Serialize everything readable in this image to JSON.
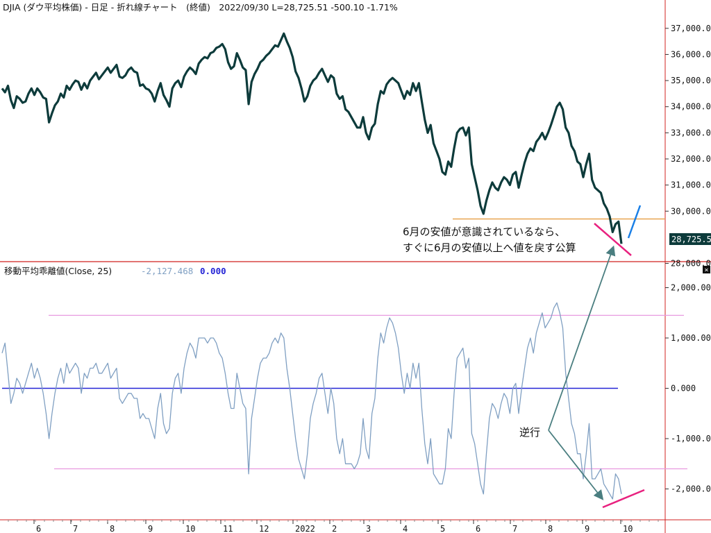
{
  "header": {
    "title": "DJIA (ダウ平均株価) - 日足 - 折れ線チャート　(終値)　2022/09/30 L=28,725.51 -500.10 -1.71%"
  },
  "indicator": {
    "title": "移動平均乖離値(Close, 25)",
    "value": "-2,127.468",
    "value2": "0.000"
  },
  "annotations": {
    "line1": "6月の安値が意識されているなら、",
    "line2": "すぐに6月の安値以上へ値を戻す公算",
    "divergence": "逆行"
  },
  "last_price_label": "28,725.5",
  "close_box_label": "×",
  "colors": {
    "price_line": "#0d3b3b",
    "osc_line": "#7f9fc2",
    "zero_line": "#2323d6",
    "band_line": "#e89ae0",
    "support_line": "#e8a450",
    "pink_mark": "#e8217f",
    "blue_mark": "#1a7fe6",
    "arrow": "#4a7e80",
    "frame_red": "#d0201f"
  },
  "chart_data": [
    {
      "type": "line",
      "title": "DJIA (ダウ平均株価) - 日足 - 折れ線チャート　(終値)",
      "ylim": [
        28200,
        37500
      ],
      "y_ticks": [
        "37,000.00",
        "36,000.00",
        "35,000.00",
        "34,000.00",
        "33,000.00",
        "32,000.00",
        "31,000.00",
        "30,000.00",
        "28,000.00"
      ],
      "x_ticks": [
        "6",
        "7",
        "8",
        "9",
        "10",
        "11",
        "12",
        "2022",
        "2",
        "3",
        "4",
        "5",
        "6",
        "7",
        "8",
        "9",
        "10"
      ],
      "horizontal_line": 29700,
      "series": [
        {
          "name": "Close",
          "values": [
            34700,
            34550,
            34800,
            34250,
            33950,
            34400,
            34300,
            34150,
            34200,
            34500,
            34700,
            34450,
            34700,
            34550,
            34350,
            34300,
            33400,
            33750,
            34050,
            34200,
            34500,
            34350,
            34800,
            34650,
            34850,
            35000,
            34950,
            34650,
            34900,
            34700,
            35000,
            35150,
            35300,
            35050,
            35200,
            35350,
            35500,
            35300,
            35450,
            35600,
            35150,
            35100,
            35200,
            35400,
            35500,
            35350,
            35300,
            34800,
            34850,
            34700,
            34650,
            34500,
            34200,
            34600,
            34900,
            34450,
            34250,
            34000,
            34700,
            34900,
            35000,
            34750,
            35150,
            35350,
            35500,
            35400,
            35250,
            35650,
            35800,
            35900,
            35850,
            36050,
            36100,
            36250,
            36300,
            36400,
            36200,
            35700,
            35450,
            35550,
            36050,
            35800,
            35500,
            35400,
            34100,
            34950,
            35250,
            35450,
            35700,
            35800,
            35950,
            36050,
            36200,
            36350,
            36300,
            36550,
            36800,
            36500,
            36250,
            35900,
            35350,
            35100,
            34700,
            34200,
            34400,
            34800,
            35000,
            35100,
            35300,
            35450,
            35200,
            34950,
            35200,
            35100,
            34500,
            34300,
            34400,
            33900,
            33800,
            33600,
            33400,
            33200,
            33200,
            33600,
            33000,
            32750,
            33200,
            33350,
            34100,
            34600,
            34500,
            34850,
            35000,
            35100,
            35000,
            34900,
            34600,
            34300,
            34600,
            34450,
            34900,
            34600,
            34900,
            34200,
            33500,
            33000,
            33300,
            32600,
            32300,
            32000,
            31500,
            31400,
            31900,
            31700,
            32400,
            33000,
            33150,
            33200,
            32900,
            33200,
            31800,
            31300,
            30800,
            30200,
            29900,
            30400,
            30800,
            31100,
            30900,
            30800,
            31100,
            31300,
            31200,
            31000,
            31400,
            31500,
            30900,
            31400,
            31850,
            32200,
            32400,
            32300,
            32650,
            32800,
            33000,
            32750,
            33000,
            33300,
            33650,
            34000,
            34150,
            33900,
            33200,
            33000,
            32500,
            32300,
            31900,
            31800,
            31300,
            31800,
            32200,
            31200,
            30900,
            30800,
            30700,
            30300,
            30100,
            29800,
            29200,
            29500,
            29600,
            28750
          ]
        }
      ]
    },
    {
      "type": "line",
      "title": "移動平均乖離値(Close, 25)",
      "ylim": [
        -2600,
        2200
      ],
      "y_ticks": [
        "2,000.00",
        "1,000.00",
        "0.000",
        "-1,000.00",
        "-2,000.00"
      ],
      "x_ticks": [
        "6",
        "7",
        "8",
        "9",
        "10",
        "11",
        "12",
        "2022",
        "2",
        "3",
        "4",
        "5",
        "6",
        "7",
        "8",
        "9",
        "10"
      ],
      "band_lines": [
        1450,
        -1600
      ],
      "zero_line": 0,
      "series": [
        {
          "name": "Close, 25",
          "values": [
            700,
            900,
            300,
            -300,
            -100,
            200,
            100,
            -100,
            100,
            300,
            500,
            200,
            400,
            200,
            -100,
            -500,
            -1000,
            -500,
            -100,
            200,
            400,
            100,
            500,
            300,
            400,
            500,
            400,
            -100,
            300,
            200,
            400,
            400,
            500,
            300,
            300,
            400,
            500,
            200,
            300,
            400,
            -200,
            -300,
            -200,
            -100,
            -100,
            -200,
            -200,
            -600,
            -500,
            -600,
            -600,
            -800,
            -1000,
            -400,
            -100,
            -700,
            -900,
            -800,
            -100,
            200,
            300,
            -100,
            400,
            700,
            900,
            800,
            600,
            1000,
            1000,
            1000,
            900,
            1000,
            1000,
            900,
            700,
            600,
            300,
            -100,
            -400,
            -400,
            300,
            0,
            -300,
            -400,
            -1700,
            -600,
            -200,
            200,
            500,
            600,
            600,
            700,
            900,
            1000,
            900,
            1100,
            1000,
            400,
            0,
            -500,
            -1000,
            -1400,
            -1600,
            -1800,
            -1300,
            -600,
            -300,
            -100,
            200,
            300,
            -100,
            -500,
            0,
            -300,
            -1000,
            -1300,
            -1000,
            -1500,
            -1500,
            -1500,
            -1600,
            -1500,
            -1300,
            -600,
            -1200,
            -1400,
            -500,
            -200,
            600,
            1100,
            900,
            1200,
            1400,
            1300,
            1100,
            800,
            300,
            -100,
            300,
            0,
            500,
            200,
            500,
            -400,
            -1100,
            -1500,
            -1000,
            -1700,
            -1800,
            -1900,
            -1900,
            -1600,
            -800,
            -1000,
            -100,
            600,
            700,
            800,
            400,
            600,
            -900,
            -1100,
            -1500,
            -1900,
            -2100,
            -1300,
            -600,
            -300,
            -400,
            -600,
            -300,
            -100,
            -200,
            -500,
            0,
            100,
            -500,
            0,
            400,
            800,
            1000,
            700,
            1100,
            1300,
            1500,
            1200,
            1300,
            1400,
            1600,
            1700,
            1500,
            1200,
            300,
            -200,
            -700,
            -900,
            -1300,
            -1300,
            -1800,
            -1300,
            -700,
            -1800,
            -1800,
            -1700,
            -1600,
            -1900,
            -2000,
            -2100,
            -2200,
            -1700,
            -1800,
            -2100
          ]
        }
      ]
    }
  ]
}
